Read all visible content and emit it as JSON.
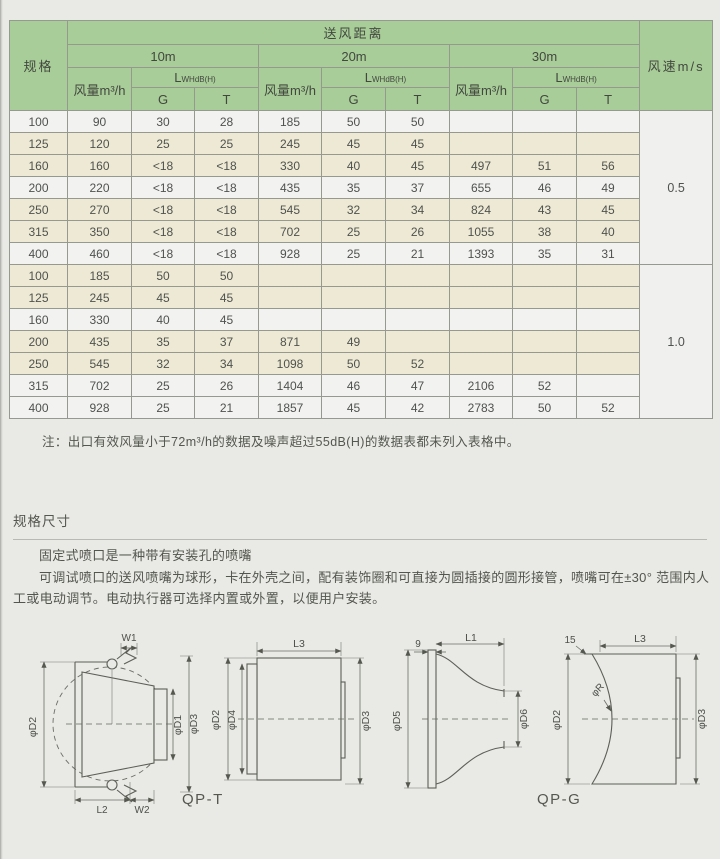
{
  "colors": {
    "header_green": "#a8cd99",
    "row_cream": "#ede9d4",
    "row_white": "#f2f2f0",
    "page_bg": "#e9e9e6"
  },
  "table": {
    "header": {
      "spec": "规格",
      "distance": "送风距离",
      "speed": "风速m/s",
      "groups": [
        "10m",
        "20m",
        "30m"
      ],
      "airflow": "风量m³/h",
      "noise_main": "L",
      "noise_sub": "WHdB(H)",
      "g": "G",
      "t": "T"
    },
    "speed_groups": [
      {
        "speed": "0.5",
        "rows": [
          {
            "spec": "100",
            "cells": [
              "90",
              "30",
              "28",
              "185",
              "50",
              "50",
              "",
              "",
              ""
            ],
            "shade": "w"
          },
          {
            "spec": "125",
            "cells": [
              "120",
              "25",
              "25",
              "245",
              "45",
              "45",
              "",
              "",
              ""
            ],
            "shade": "c"
          },
          {
            "spec": "160",
            "cells": [
              "160",
              "<18",
              "<18",
              "330",
              "40",
              "45",
              "497",
              "51",
              "56"
            ],
            "shade": "c"
          },
          {
            "spec": "200",
            "cells": [
              "220",
              "<18",
              "<18",
              "435",
              "35",
              "37",
              "655",
              "46",
              "49"
            ],
            "shade": "w"
          },
          {
            "spec": "250",
            "cells": [
              "270",
              "<18",
              "<18",
              "545",
              "32",
              "34",
              "824",
              "43",
              "45"
            ],
            "shade": "c"
          },
          {
            "spec": "315",
            "cells": [
              "350",
              "<18",
              "<18",
              "702",
              "25",
              "26",
              "1055",
              "38",
              "40"
            ],
            "shade": "c"
          },
          {
            "spec": "400",
            "cells": [
              "460",
              "<18",
              "<18",
              "928",
              "25",
              "21",
              "1393",
              "35",
              "31"
            ],
            "shade": "w"
          }
        ]
      },
      {
        "speed": "1.0",
        "rows": [
          {
            "spec": "100",
            "cells": [
              "185",
              "50",
              "50",
              "",
              "",
              "",
              "",
              "",
              ""
            ],
            "shade": "c"
          },
          {
            "spec": "125",
            "cells": [
              "245",
              "45",
              "45",
              "",
              "",
              "",
              "",
              "",
              ""
            ],
            "shade": "c"
          },
          {
            "spec": "160",
            "cells": [
              "330",
              "40",
              "45",
              "",
              "",
              "",
              "",
              "",
              ""
            ],
            "shade": "w"
          },
          {
            "spec": "200",
            "cells": [
              "435",
              "35",
              "37",
              "871",
              "49",
              "",
              "",
              "",
              ""
            ],
            "shade": "c"
          },
          {
            "spec": "250",
            "cells": [
              "545",
              "32",
              "34",
              "1098",
              "50",
              "52",
              "",
              "",
              ""
            ],
            "shade": "c"
          },
          {
            "spec": "315",
            "cells": [
              "702",
              "25",
              "26",
              "1404",
              "46",
              "47",
              "2106",
              "52",
              ""
            ],
            "shade": "w"
          },
          {
            "spec": "400",
            "cells": [
              "928",
              "25",
              "21",
              "1857",
              "45",
              "42",
              "2783",
              "50",
              "52"
            ],
            "shade": "w"
          }
        ]
      }
    ]
  },
  "note": "注：出口有效风量小于72m³/h的数据及噪声超过55dB(H)的数据表都未列入表格中。",
  "sections": {
    "dims_title": "规格尺寸",
    "para1": "固定式喷口是一种带有安装孔的喷嘴",
    "para2": "可调试喷口的送风喷嘴为球形，卡在外壳之间，配有装饰圈和可直接为圆插接的圆形接管，喷嘴可在±30° 范围内人工或电动调节。电动执行器可选择内置或外置，以便用户安装。"
  },
  "drawings": {
    "caption_t": "QP-T",
    "caption_g": "QP-G",
    "d1": {
      "w1": "W1",
      "d2": "φD2",
      "d1": "φD1",
      "d3": "φD3",
      "l2": "L2",
      "w2": "W2"
    },
    "d2": {
      "l3": "L3",
      "d2": "φD2",
      "d4": "φD4",
      "d3": "φD3"
    },
    "d3": {
      "nine": "9",
      "l1": "L1",
      "d5": "φD5",
      "d6": "φD6"
    },
    "d4": {
      "fifteen": "15",
      "l3": "L3",
      "d2": "φD2",
      "r": "φR",
      "d3": "φD3"
    }
  }
}
